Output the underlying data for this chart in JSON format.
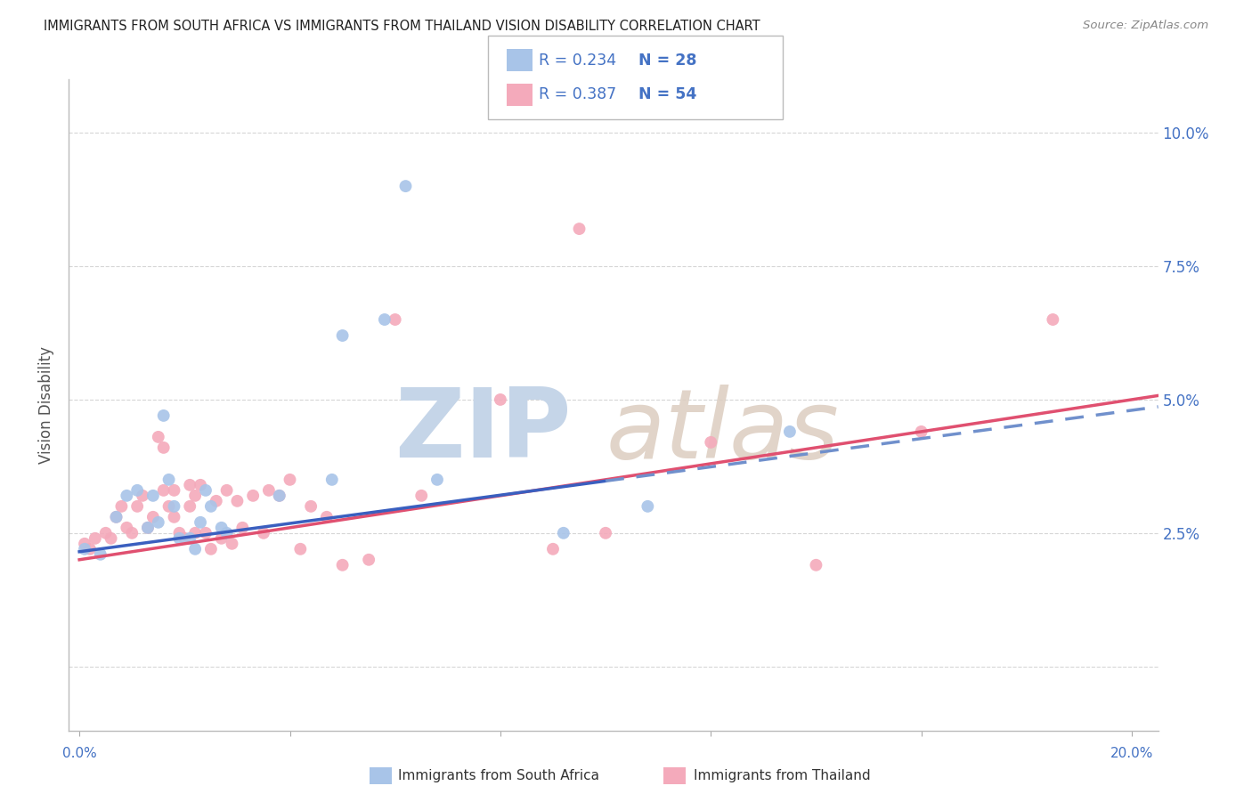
{
  "title": "IMMIGRANTS FROM SOUTH AFRICA VS IMMIGRANTS FROM THAILAND VISION DISABILITY CORRELATION CHART",
  "source": "Source: ZipAtlas.com",
  "ylabel": "Vision Disability",
  "yticks": [
    0.0,
    0.025,
    0.05,
    0.075,
    0.1
  ],
  "ytick_labels": [
    "",
    "2.5%",
    "5.0%",
    "7.5%",
    "10.0%"
  ],
  "xticks": [
    0.0,
    0.04,
    0.08,
    0.12,
    0.16,
    0.2
  ],
  "r_south_africa": 0.234,
  "n_south_africa": 28,
  "r_thailand": 0.387,
  "n_thailand": 54,
  "color_south_africa": "#A8C4E8",
  "color_thailand": "#F4AABB",
  "line_color_south_africa": "#3A5FBF",
  "line_color_thailand": "#E05070",
  "line_dash_color": "#7090CC",
  "legend_text_color": "#4472C4",
  "title_color": "#222222",
  "background_color": "#FFFFFF",
  "grid_color": "#CCCCCC",
  "south_africa_x": [
    0.001,
    0.004,
    0.007,
    0.009,
    0.011,
    0.013,
    0.014,
    0.015,
    0.016,
    0.017,
    0.018,
    0.019,
    0.021,
    0.022,
    0.023,
    0.024,
    0.025,
    0.027,
    0.028,
    0.038,
    0.048,
    0.05,
    0.058,
    0.062,
    0.068,
    0.092,
    0.108,
    0.135
  ],
  "south_africa_y": [
    0.022,
    0.021,
    0.028,
    0.032,
    0.033,
    0.026,
    0.032,
    0.027,
    0.047,
    0.035,
    0.03,
    0.024,
    0.024,
    0.022,
    0.027,
    0.033,
    0.03,
    0.026,
    0.025,
    0.032,
    0.035,
    0.062,
    0.065,
    0.09,
    0.035,
    0.025,
    0.03,
    0.044
  ],
  "thailand_x": [
    0.001,
    0.002,
    0.003,
    0.005,
    0.006,
    0.007,
    0.008,
    0.009,
    0.01,
    0.011,
    0.012,
    0.013,
    0.014,
    0.015,
    0.016,
    0.016,
    0.017,
    0.018,
    0.018,
    0.019,
    0.02,
    0.021,
    0.021,
    0.022,
    0.022,
    0.023,
    0.024,
    0.025,
    0.026,
    0.027,
    0.028,
    0.029,
    0.03,
    0.031,
    0.033,
    0.035,
    0.036,
    0.038,
    0.04,
    0.042,
    0.044,
    0.047,
    0.05,
    0.055,
    0.06,
    0.065,
    0.08,
    0.09,
    0.095,
    0.1,
    0.12,
    0.14,
    0.16,
    0.185
  ],
  "thailand_y": [
    0.023,
    0.022,
    0.024,
    0.025,
    0.024,
    0.028,
    0.03,
    0.026,
    0.025,
    0.03,
    0.032,
    0.026,
    0.028,
    0.043,
    0.041,
    0.033,
    0.03,
    0.028,
    0.033,
    0.025,
    0.024,
    0.03,
    0.034,
    0.025,
    0.032,
    0.034,
    0.025,
    0.022,
    0.031,
    0.024,
    0.033,
    0.023,
    0.031,
    0.026,
    0.032,
    0.025,
    0.033,
    0.032,
    0.035,
    0.022,
    0.03,
    0.028,
    0.019,
    0.02,
    0.065,
    0.032,
    0.05,
    0.022,
    0.082,
    0.025,
    0.042,
    0.019,
    0.044,
    0.065
  ],
  "sa_line_x_solid_end": 0.1,
  "sa_line_x_dash_start": 0.1,
  "xlim_min": -0.002,
  "xlim_max": 0.205,
  "ylim_min": -0.012,
  "ylim_max": 0.11
}
